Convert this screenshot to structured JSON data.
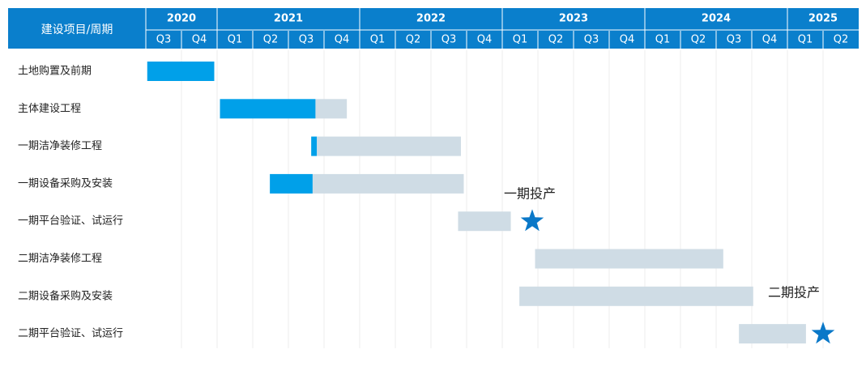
{
  "chart_data": {
    "type": "gantt",
    "header_label": "建设项目/周期",
    "xlim": [
      2020.5,
      2025.5
    ],
    "years": [
      2020,
      2021,
      2022,
      2023,
      2024,
      2025
    ],
    "quarters": [
      "Q3",
      "Q4",
      "Q1",
      "Q2",
      "Q3",
      "Q4",
      "Q1",
      "Q2",
      "Q3",
      "Q4",
      "Q1",
      "Q2",
      "Q3",
      "Q4",
      "Q1",
      "Q2",
      "Q3",
      "Q4",
      "Q1",
      "Q2"
    ],
    "done_color": "#00a0e9",
    "planned_color": "#cfdce5",
    "milestone_color": "#0a78c8",
    "tasks": [
      {
        "name": "土地购置及前期",
        "start": 2020.51,
        "done": 2020.98,
        "end": 2020.98
      },
      {
        "name": "主体建设工程",
        "start": 2021.02,
        "done": 2021.69,
        "end": 2021.91
      },
      {
        "name": "一期洁净装修工程",
        "start": 2021.66,
        "done": 2021.7,
        "end": 2022.71
      },
      {
        "name": "一期设备采购及安装",
        "start": 2021.37,
        "done": 2021.67,
        "end": 2022.73
      },
      {
        "name": "一期平台验证、试运行",
        "start": 2022.69,
        "done": null,
        "end": 2023.06
      },
      {
        "name": "二期洁净装修工程",
        "start": 2023.23,
        "done": null,
        "end": 2024.55
      },
      {
        "name": "二期设备采购及安装",
        "start": 2023.12,
        "done": null,
        "end": 2024.76
      },
      {
        "name": "二期平台验证、试运行",
        "start": 2024.66,
        "done": null,
        "end": 2025.13
      }
    ],
    "milestones": [
      {
        "label": "一期投产",
        "task": 4,
        "x": 2023.21
      },
      {
        "label": "二期投产",
        "task": 7,
        "x": 2025.25
      }
    ]
  }
}
